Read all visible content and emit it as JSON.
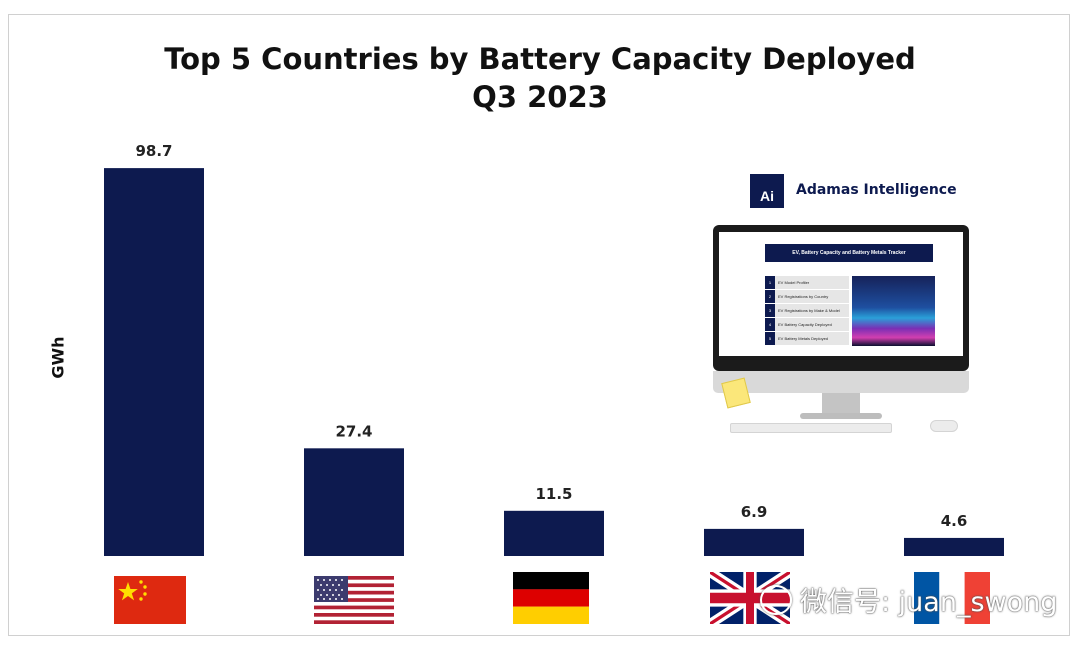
{
  "chart_data": {
    "type": "bar",
    "title": "Top 5 Countries by Battery Capacity Deployed",
    "subtitle": "Q3 2023",
    "ylabel": "GWh",
    "xlabel": "",
    "categories": [
      "China",
      "United States",
      "Germany",
      "United Kingdom",
      "France"
    ],
    "values": [
      98.7,
      27.4,
      11.5,
      6.9,
      4.6
    ],
    "value_labels": [
      "98.7",
      "27.4",
      "11.5",
      "6.9",
      "4.6"
    ],
    "ylim": [
      0,
      100
    ],
    "bar_color": "#0d1a4f",
    "grid": false,
    "legend": "none",
    "x_axis_labels": "country flags"
  },
  "flags": [
    "cn-flag",
    "us-flag",
    "de-flag",
    "gb-flag",
    "fr-flag"
  ],
  "ad": {
    "logo_text": "Ai",
    "brand": "Adamas Intelligence",
    "tracker_title": "EV, Battery Capacity and Battery Metals Tracker",
    "menu": [
      {
        "num": "1",
        "label": "EV Model Profiler"
      },
      {
        "num": "2",
        "label": "EV Registrations by Country"
      },
      {
        "num": "3",
        "label": "EV Registrations by Make & Model"
      },
      {
        "num": "4",
        "label": "EV Battery Capacity Deployed"
      },
      {
        "num": "5",
        "label": "EV Battery Metals Deployed"
      }
    ]
  },
  "watermark": {
    "text": "微信号: juan_swong",
    "icon": "wechat-icon"
  },
  "colors": {
    "bar": "#0d1a4f",
    "title": "#111111",
    "background": "#ffffff"
  }
}
